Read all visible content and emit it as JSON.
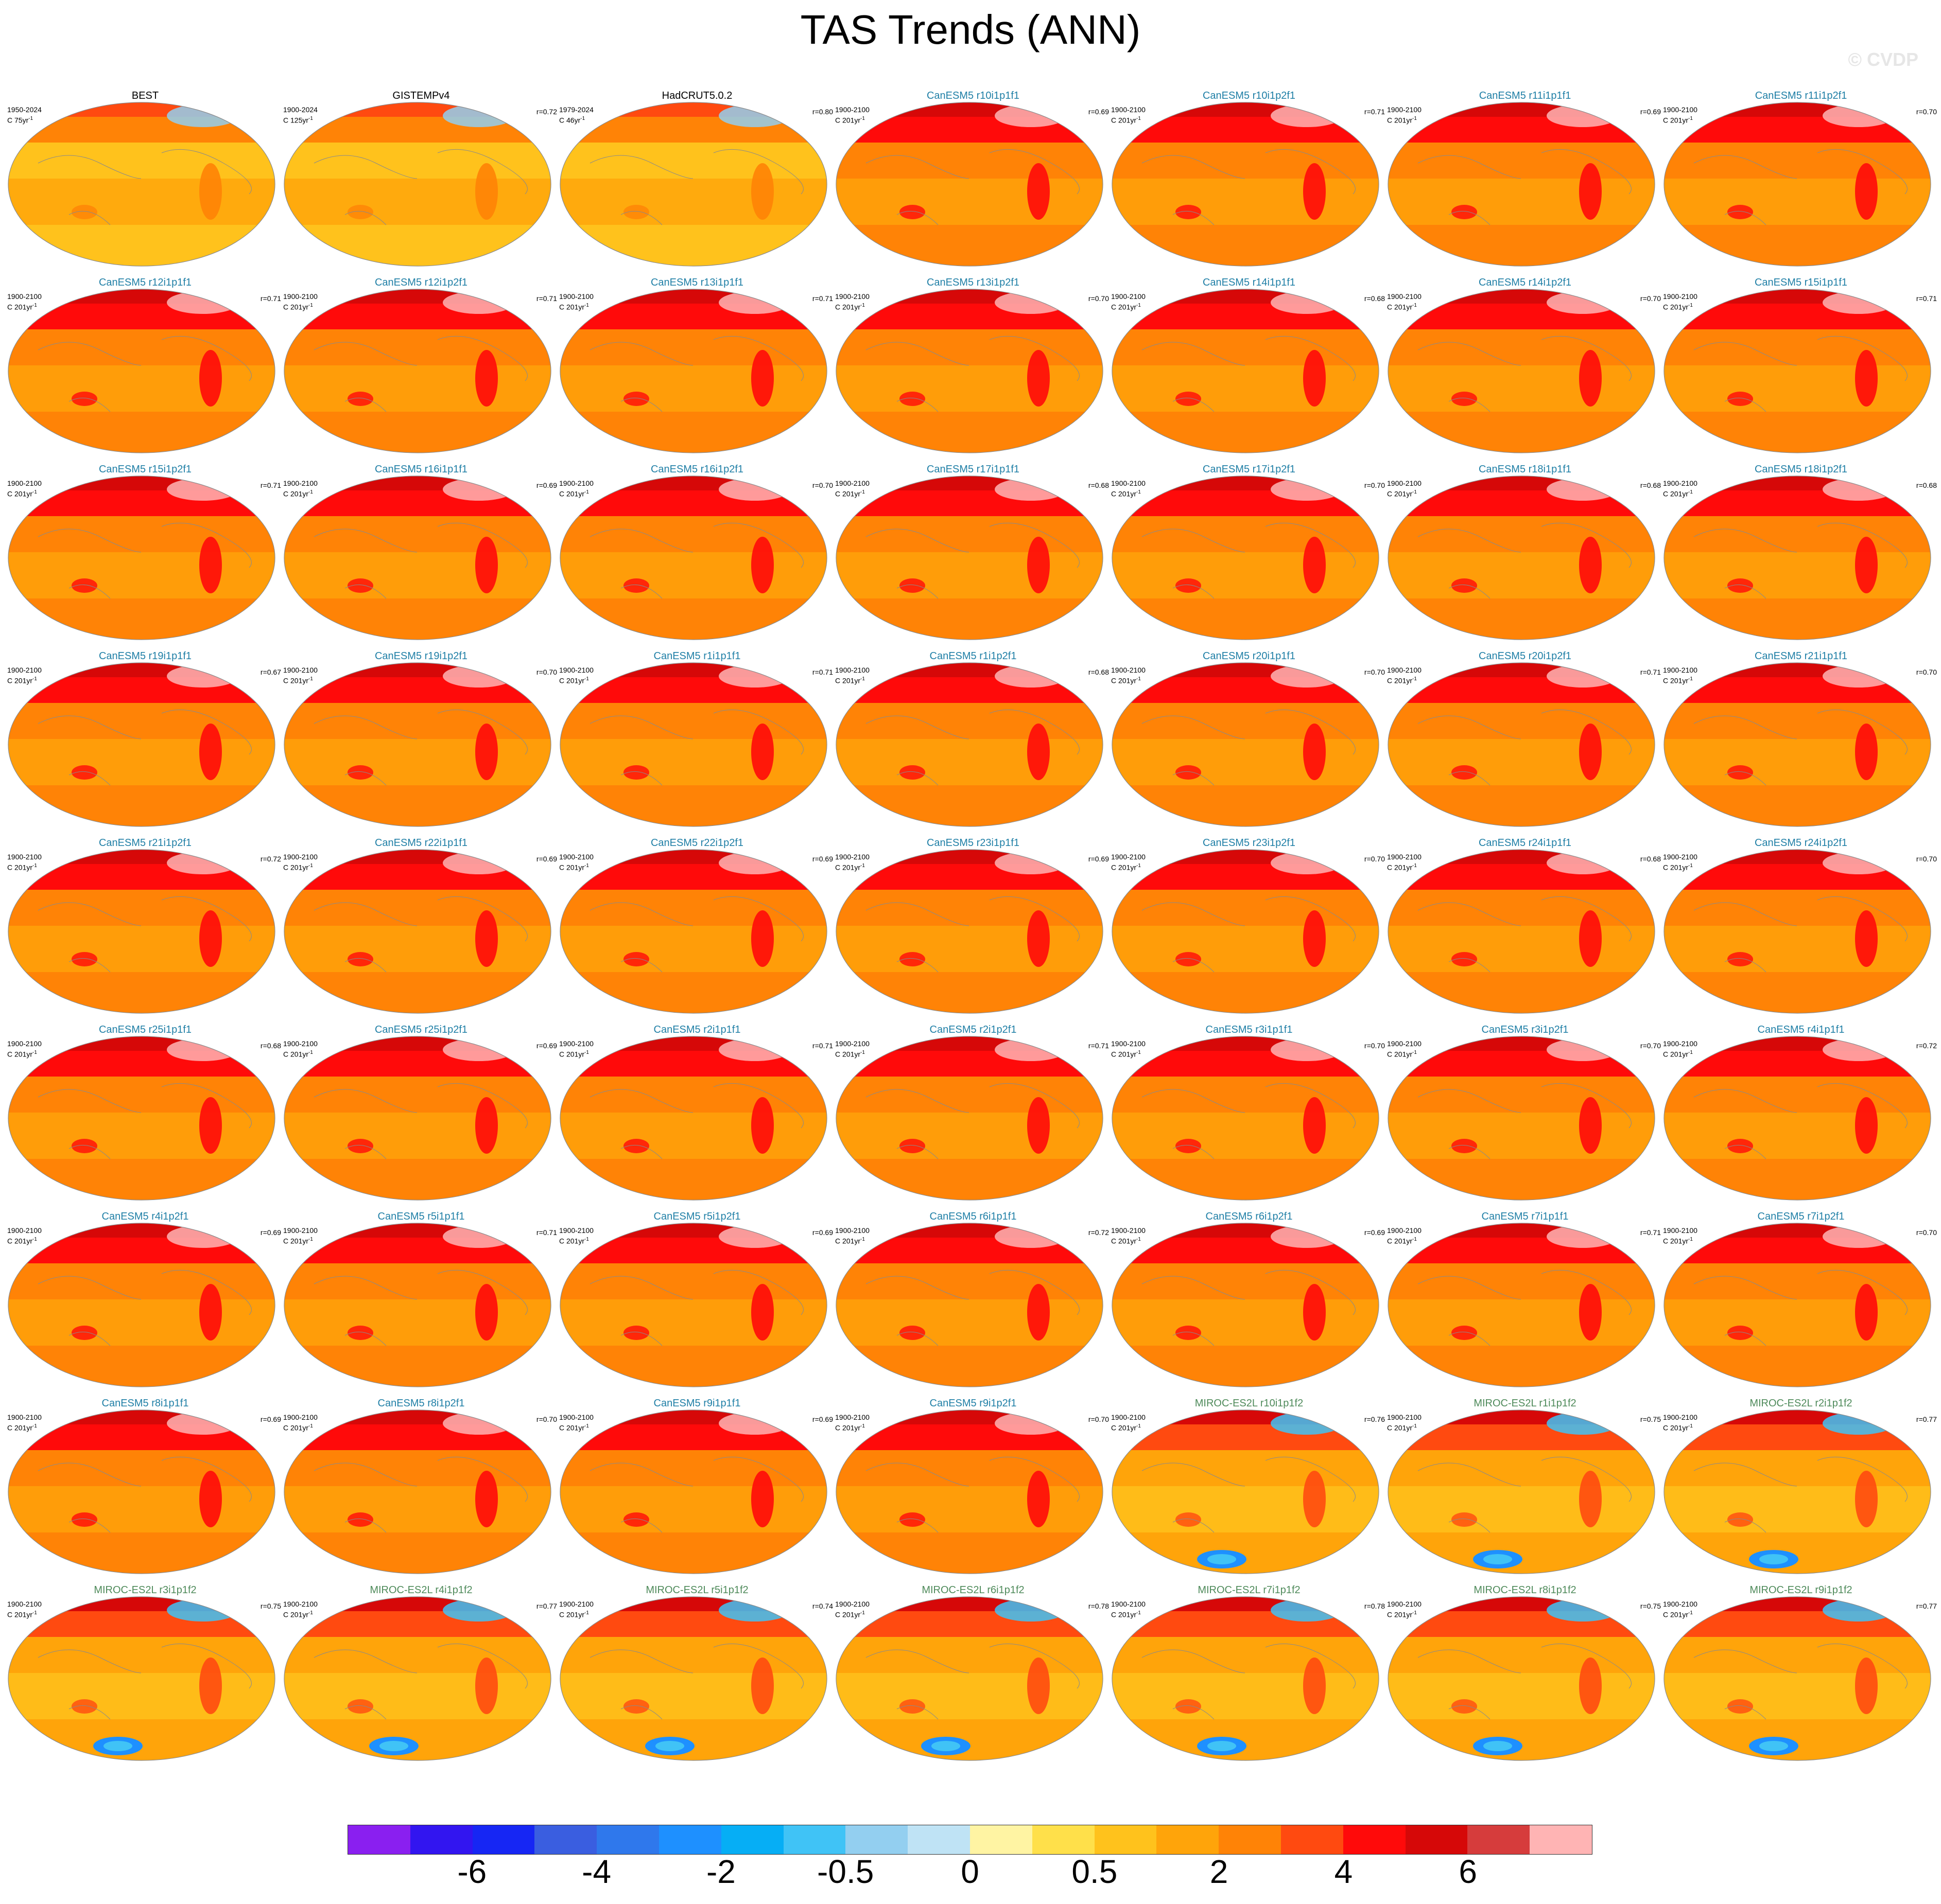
{
  "title": "TAS Trends (ANN)",
  "watermark": "© CVDP",
  "colorbar": {
    "colors": [
      "#8a1ff0",
      "#3215f0",
      "#1626f4",
      "#3a5ee0",
      "#2f78ec",
      "#1e90ff",
      "#06aef5",
      "#40c3f6",
      "#93cff0",
      "#bfe3f5",
      "#fff4a3",
      "#ffe04a",
      "#ffc21c",
      "#ffa40a",
      "#ff8306",
      "#ff4a10",
      "#ff0a0a",
      "#d60808",
      "#d63c3c",
      "#ffb4b4"
    ],
    "labels": [
      "-6",
      "-4",
      "-2",
      "-0.5",
      "0",
      "0.5",
      "2",
      "4",
      "6"
    ]
  },
  "panels": [
    {
      "title": "BEST",
      "group": "obs",
      "period": "1950-2024",
      "units": "C 75yr",
      "exp": "-1",
      "r": ""
    },
    {
      "title": "GISTEMPv4",
      "group": "obs",
      "period": "1900-2024",
      "units": "C 125yr",
      "exp": "-1",
      "r": "r=0.72"
    },
    {
      "title": "HadCRUT5.0.2",
      "group": "obs",
      "period": "1979-2024",
      "units": "C 46yr",
      "exp": "-1",
      "r": "r=0.80"
    },
    {
      "title": "CanESM5 r10i1p1f1",
      "group": "can",
      "period": "1900-2100",
      "units": "C 201yr",
      "exp": "-1",
      "r": "r=0.69"
    },
    {
      "title": "CanESM5 r10i1p2f1",
      "group": "can",
      "period": "1900-2100",
      "units": "C 201yr",
      "exp": "-1",
      "r": "r=0.71"
    },
    {
      "title": "CanESM5 r11i1p1f1",
      "group": "can",
      "period": "1900-2100",
      "units": "C 201yr",
      "exp": "-1",
      "r": "r=0.69"
    },
    {
      "title": "CanESM5 r11i1p2f1",
      "group": "can",
      "period": "1900-2100",
      "units": "C 201yr",
      "exp": "-1",
      "r": "r=0.70"
    },
    {
      "title": "CanESM5 r12i1p1f1",
      "group": "can",
      "period": "1900-2100",
      "units": "C 201yr",
      "exp": "-1",
      "r": "r=0.71"
    },
    {
      "title": "CanESM5 r12i1p2f1",
      "group": "can",
      "period": "1900-2100",
      "units": "C 201yr",
      "exp": "-1",
      "r": "r=0.71"
    },
    {
      "title": "CanESM5 r13i1p1f1",
      "group": "can",
      "period": "1900-2100",
      "units": "C 201yr",
      "exp": "-1",
      "r": "r=0.71"
    },
    {
      "title": "CanESM5 r13i1p2f1",
      "group": "can",
      "period": "1900-2100",
      "units": "C 201yr",
      "exp": "-1",
      "r": "r=0.70"
    },
    {
      "title": "CanESM5 r14i1p1f1",
      "group": "can",
      "period": "1900-2100",
      "units": "C 201yr",
      "exp": "-1",
      "r": "r=0.68"
    },
    {
      "title": "CanESM5 r14i1p2f1",
      "group": "can",
      "period": "1900-2100",
      "units": "C 201yr",
      "exp": "-1",
      "r": "r=0.70"
    },
    {
      "title": "CanESM5 r15i1p1f1",
      "group": "can",
      "period": "1900-2100",
      "units": "C 201yr",
      "exp": "-1",
      "r": "r=0.71"
    },
    {
      "title": "CanESM5 r15i1p2f1",
      "group": "can",
      "period": "1900-2100",
      "units": "C 201yr",
      "exp": "-1",
      "r": "r=0.71"
    },
    {
      "title": "CanESM5 r16i1p1f1",
      "group": "can",
      "period": "1900-2100",
      "units": "C 201yr",
      "exp": "-1",
      "r": "r=0.69"
    },
    {
      "title": "CanESM5 r16i1p2f1",
      "group": "can",
      "period": "1900-2100",
      "units": "C 201yr",
      "exp": "-1",
      "r": "r=0.70"
    },
    {
      "title": "CanESM5 r17i1p1f1",
      "group": "can",
      "period": "1900-2100",
      "units": "C 201yr",
      "exp": "-1",
      "r": "r=0.68"
    },
    {
      "title": "CanESM5 r17i1p2f1",
      "group": "can",
      "period": "1900-2100",
      "units": "C 201yr",
      "exp": "-1",
      "r": "r=0.70"
    },
    {
      "title": "CanESM5 r18i1p1f1",
      "group": "can",
      "period": "1900-2100",
      "units": "C 201yr",
      "exp": "-1",
      "r": "r=0.68"
    },
    {
      "title": "CanESM5 r18i1p2f1",
      "group": "can",
      "period": "1900-2100",
      "units": "C 201yr",
      "exp": "-1",
      "r": "r=0.68"
    },
    {
      "title": "CanESM5 r19i1p1f1",
      "group": "can",
      "period": "1900-2100",
      "units": "C 201yr",
      "exp": "-1",
      "r": "r=0.67"
    },
    {
      "title": "CanESM5 r19i1p2f1",
      "group": "can",
      "period": "1900-2100",
      "units": "C 201yr",
      "exp": "-1",
      "r": "r=0.70"
    },
    {
      "title": "CanESM5 r1i1p1f1",
      "group": "can",
      "period": "1900-2100",
      "units": "C 201yr",
      "exp": "-1",
      "r": "r=0.71"
    },
    {
      "title": "CanESM5 r1i1p2f1",
      "group": "can",
      "period": "1900-2100",
      "units": "C 201yr",
      "exp": "-1",
      "r": "r=0.68"
    },
    {
      "title": "CanESM5 r20i1p1f1",
      "group": "can",
      "period": "1900-2100",
      "units": "C 201yr",
      "exp": "-1",
      "r": "r=0.70"
    },
    {
      "title": "CanESM5 r20i1p2f1",
      "group": "can",
      "period": "1900-2100",
      "units": "C 201yr",
      "exp": "-1",
      "r": "r=0.71"
    },
    {
      "title": "CanESM5 r21i1p1f1",
      "group": "can",
      "period": "1900-2100",
      "units": "C 201yr",
      "exp": "-1",
      "r": "r=0.70"
    },
    {
      "title": "CanESM5 r21i1p2f1",
      "group": "can",
      "period": "1900-2100",
      "units": "C 201yr",
      "exp": "-1",
      "r": "r=0.72"
    },
    {
      "title": "CanESM5 r22i1p1f1",
      "group": "can",
      "period": "1900-2100",
      "units": "C 201yr",
      "exp": "-1",
      "r": "r=0.69"
    },
    {
      "title": "CanESM5 r22i1p2f1",
      "group": "can",
      "period": "1900-2100",
      "units": "C 201yr",
      "exp": "-1",
      "r": "r=0.69"
    },
    {
      "title": "CanESM5 r23i1p1f1",
      "group": "can",
      "period": "1900-2100",
      "units": "C 201yr",
      "exp": "-1",
      "r": "r=0.69"
    },
    {
      "title": "CanESM5 r23i1p2f1",
      "group": "can",
      "period": "1900-2100",
      "units": "C 201yr",
      "exp": "-1",
      "r": "r=0.70"
    },
    {
      "title": "CanESM5 r24i1p1f1",
      "group": "can",
      "period": "1900-2100",
      "units": "C 201yr",
      "exp": "-1",
      "r": "r=0.68"
    },
    {
      "title": "CanESM5 r24i1p2f1",
      "group": "can",
      "period": "1900-2100",
      "units": "C 201yr",
      "exp": "-1",
      "r": "r=0.70"
    },
    {
      "title": "CanESM5 r25i1p1f1",
      "group": "can",
      "period": "1900-2100",
      "units": "C 201yr",
      "exp": "-1",
      "r": "r=0.68"
    },
    {
      "title": "CanESM5 r25i1p2f1",
      "group": "can",
      "period": "1900-2100",
      "units": "C 201yr",
      "exp": "-1",
      "r": "r=0.69"
    },
    {
      "title": "CanESM5 r2i1p1f1",
      "group": "can",
      "period": "1900-2100",
      "units": "C 201yr",
      "exp": "-1",
      "r": "r=0.71"
    },
    {
      "title": "CanESM5 r2i1p2f1",
      "group": "can",
      "period": "1900-2100",
      "units": "C 201yr",
      "exp": "-1",
      "r": "r=0.71"
    },
    {
      "title": "CanESM5 r3i1p1f1",
      "group": "can",
      "period": "1900-2100",
      "units": "C 201yr",
      "exp": "-1",
      "r": "r=0.70"
    },
    {
      "title": "CanESM5 r3i1p2f1",
      "group": "can",
      "period": "1900-2100",
      "units": "C 201yr",
      "exp": "-1",
      "r": "r=0.70"
    },
    {
      "title": "CanESM5 r4i1p1f1",
      "group": "can",
      "period": "1900-2100",
      "units": "C 201yr",
      "exp": "-1",
      "r": "r=0.72"
    },
    {
      "title": "CanESM5 r4i1p2f1",
      "group": "can",
      "period": "1900-2100",
      "units": "C 201yr",
      "exp": "-1",
      "r": "r=0.69"
    },
    {
      "title": "CanESM5 r5i1p1f1",
      "group": "can",
      "period": "1900-2100",
      "units": "C 201yr",
      "exp": "-1",
      "r": "r=0.71"
    },
    {
      "title": "CanESM5 r5i1p2f1",
      "group": "can",
      "period": "1900-2100",
      "units": "C 201yr",
      "exp": "-1",
      "r": "r=0.69"
    },
    {
      "title": "CanESM5 r6i1p1f1",
      "group": "can",
      "period": "1900-2100",
      "units": "C 201yr",
      "exp": "-1",
      "r": "r=0.72"
    },
    {
      "title": "CanESM5 r6i1p2f1",
      "group": "can",
      "period": "1900-2100",
      "units": "C 201yr",
      "exp": "-1",
      "r": "r=0.69"
    },
    {
      "title": "CanESM5 r7i1p1f1",
      "group": "can",
      "period": "1900-2100",
      "units": "C 201yr",
      "exp": "-1",
      "r": "r=0.71"
    },
    {
      "title": "CanESM5 r7i1p2f1",
      "group": "can",
      "period": "1900-2100",
      "units": "C 201yr",
      "exp": "-1",
      "r": "r=0.70"
    },
    {
      "title": "CanESM5 r8i1p1f1",
      "group": "can",
      "period": "1900-2100",
      "units": "C 201yr",
      "exp": "-1",
      "r": "r=0.69"
    },
    {
      "title": "CanESM5 r8i1p2f1",
      "group": "can",
      "period": "1900-2100",
      "units": "C 201yr",
      "exp": "-1",
      "r": "r=0.70"
    },
    {
      "title": "CanESM5 r9i1p1f1",
      "group": "can",
      "period": "1900-2100",
      "units": "C 201yr",
      "exp": "-1",
      "r": "r=0.69"
    },
    {
      "title": "CanESM5 r9i1p2f1",
      "group": "can",
      "period": "1900-2100",
      "units": "C 201yr",
      "exp": "-1",
      "r": "r=0.70"
    },
    {
      "title": "MIROC-ES2L r10i1p1f2",
      "group": "miroc",
      "period": "1900-2100",
      "units": "C 201yr",
      "exp": "-1",
      "r": "r=0.76"
    },
    {
      "title": "MIROC-ES2L r1i1p1f2",
      "group": "miroc",
      "period": "1900-2100",
      "units": "C 201yr",
      "exp": "-1",
      "r": "r=0.75"
    },
    {
      "title": "MIROC-ES2L r2i1p1f2",
      "group": "miroc",
      "period": "1900-2100",
      "units": "C 201yr",
      "exp": "-1",
      "r": "r=0.77"
    },
    {
      "title": "MIROC-ES2L r3i1p1f2",
      "group": "miroc",
      "period": "1900-2100",
      "units": "C 201yr",
      "exp": "-1",
      "r": "r=0.75"
    },
    {
      "title": "MIROC-ES2L r4i1p1f2",
      "group": "miroc",
      "period": "1900-2100",
      "units": "C 201yr",
      "exp": "-1",
      "r": "r=0.77"
    },
    {
      "title": "MIROC-ES2L r5i1p1f2",
      "group": "miroc",
      "period": "1900-2100",
      "units": "C 201yr",
      "exp": "-1",
      "r": "r=0.74"
    },
    {
      "title": "MIROC-ES2L r6i1p1f2",
      "group": "miroc",
      "period": "1900-2100",
      "units": "C 201yr",
      "exp": "-1",
      "r": "r=0.78"
    },
    {
      "title": "MIROC-ES2L r7i1p1f2",
      "group": "miroc",
      "period": "1900-2100",
      "units": "C 201yr",
      "exp": "-1",
      "r": "r=0.78"
    },
    {
      "title": "MIROC-ES2L r8i1p1f2",
      "group": "miroc",
      "period": "1900-2100",
      "units": "C 201yr",
      "exp": "-1",
      "r": "r=0.75"
    },
    {
      "title": "MIROC-ES2L r9i1p1f2",
      "group": "miroc",
      "period": "1900-2100",
      "units": "C 201yr",
      "exp": "-1",
      "r": "r=0.77"
    }
  ]
}
